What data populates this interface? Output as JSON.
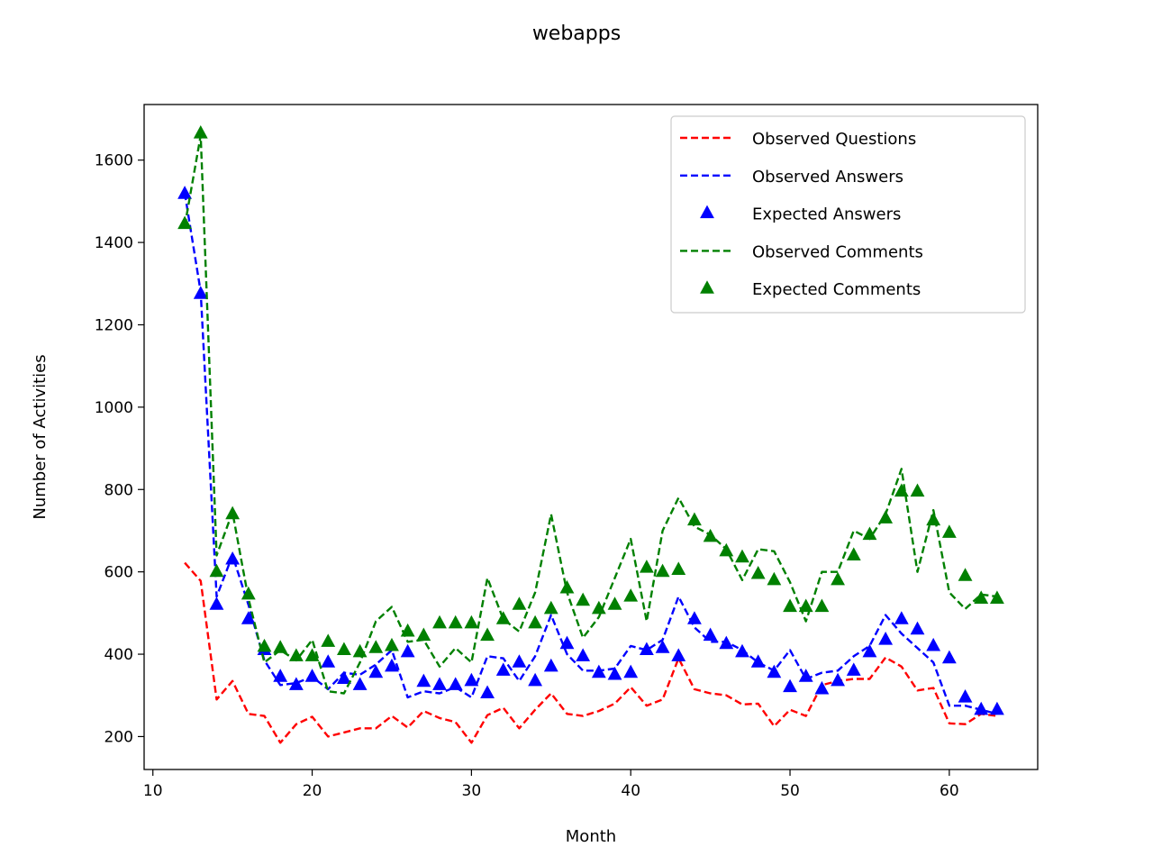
{
  "chart_data": {
    "type": "line",
    "title": "webapps",
    "xlabel": "Month",
    "ylabel": "Number of Activities",
    "xlim": [
      9.45,
      65.55
    ],
    "ylim": [
      120,
      1735
    ],
    "xticks": [
      10,
      20,
      30,
      40,
      50,
      60
    ],
    "yticks": [
      200,
      400,
      600,
      800,
      1000,
      1200,
      1400,
      1600
    ],
    "grid": false,
    "legend_position": "top-right",
    "x": [
      12,
      13,
      14,
      15,
      16,
      17,
      18,
      19,
      20,
      21,
      22,
      23,
      24,
      25,
      26,
      27,
      28,
      29,
      30,
      31,
      32,
      33,
      34,
      35,
      36,
      37,
      38,
      39,
      40,
      41,
      42,
      43,
      44,
      45,
      46,
      47,
      48,
      49,
      50,
      51,
      52,
      53,
      54,
      55,
      56,
      57,
      58,
      59,
      60,
      61,
      62,
      63
    ],
    "series": [
      {
        "name": "Observed Questions",
        "style": "dashed-line",
        "color": "#ff0000",
        "values": [
          622,
          578,
          290,
          335,
          255,
          250,
          185,
          230,
          248,
          200,
          210,
          220,
          220,
          250,
          222,
          262,
          245,
          235,
          185,
          252,
          270,
          220,
          265,
          305,
          255,
          250,
          262,
          280,
          320,
          275,
          290,
          390,
          315,
          305,
          300,
          278,
          280,
          225,
          265,
          250,
          325,
          335,
          340,
          340,
          392,
          370,
          312,
          318,
          232,
          230,
          255,
          250
        ]
      },
      {
        "name": "Observed Answers",
        "style": "dashed-line",
        "color": "#0000ff",
        "values": [
          1520,
          1280,
          540,
          640,
          520,
          385,
          325,
          330,
          345,
          315,
          355,
          350,
          375,
          410,
          295,
          310,
          305,
          320,
          295,
          395,
          390,
          335,
          395,
          495,
          400,
          360,
          360,
          365,
          420,
          410,
          435,
          540,
          465,
          430,
          430,
          410,
          380,
          360,
          410,
          340,
          355,
          360,
          395,
          420,
          495,
          450,
          415,
          380,
          275,
          275,
          265,
          255
        ]
      },
      {
        "name": "Expected Answers",
        "style": "triangle-markers",
        "color": "#0000ff",
        "values": [
          1518,
          1275,
          520,
          630,
          485,
          410,
          345,
          325,
          345,
          380,
          340,
          325,
          355,
          370,
          405,
          333,
          325,
          325,
          335,
          305,
          360,
          380,
          335,
          370,
          425,
          395,
          355,
          350,
          355,
          410,
          415,
          395,
          485,
          445,
          425,
          405,
          380,
          355,
          320,
          345,
          315,
          335,
          360,
          405,
          435,
          485,
          460,
          420,
          390,
          295,
          265,
          265
        ]
      },
      {
        "name": "Observed Comments",
        "style": "dashed-line",
        "color": "#008000",
        "values": [
          1440,
          1660,
          640,
          745,
          535,
          380,
          410,
          385,
          435,
          310,
          305,
          380,
          480,
          515,
          430,
          435,
          370,
          415,
          380,
          585,
          485,
          455,
          550,
          740,
          550,
          440,
          490,
          585,
          680,
          480,
          700,
          780,
          710,
          690,
          655,
          580,
          655,
          650,
          575,
          480,
          600,
          600,
          700,
          680,
          740,
          850,
          600,
          750,
          550,
          510,
          545,
          540
        ]
      },
      {
        "name": "Expected Comments",
        "style": "triangle-markers",
        "color": "#008000",
        "values": [
          1445,
          1665,
          600,
          740,
          545,
          418,
          415,
          395,
          395,
          430,
          410,
          405,
          415,
          420,
          455,
          445,
          475,
          475,
          475,
          445,
          485,
          520,
          475,
          510,
          560,
          530,
          510,
          520,
          540,
          610,
          600,
          605,
          725,
          685,
          650,
          635,
          595,
          580,
          515,
          515,
          515,
          580,
          640,
          690,
          730,
          795,
          795,
          725,
          695,
          590,
          535,
          535
        ]
      }
    ]
  }
}
